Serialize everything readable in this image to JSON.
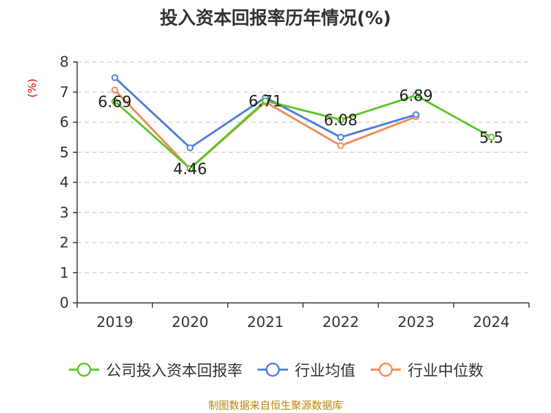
{
  "chart_data": {
    "type": "line",
    "title": "投入资本回报率历年情况(%)",
    "ylabel": "(%)",
    "categories": [
      "2019",
      "2020",
      "2021",
      "2022",
      "2023",
      "2024"
    ],
    "ylim": [
      0,
      8
    ],
    "yticks": [
      "0",
      "1",
      "2",
      "3",
      "4",
      "5",
      "6",
      "7",
      "8"
    ],
    "grid": true,
    "legend_position": "bottom",
    "series": [
      {
        "name": "公司投入资本回报率",
        "color": "#5cc62b",
        "values": [
          6.69,
          4.46,
          6.71,
          6.08,
          6.89,
          5.5
        ],
        "labels": [
          "6.69",
          "4.46",
          "6.71",
          "6.08",
          "6.89",
          "5.5"
        ]
      },
      {
        "name": "行业均值",
        "color": "#4f7fdc",
        "values": [
          7.48,
          5.15,
          6.82,
          5.5,
          6.25,
          null
        ]
      },
      {
        "name": "行业中位数",
        "color": "#f38b54",
        "values": [
          7.07,
          4.45,
          6.67,
          5.22,
          6.18,
          null
        ]
      }
    ]
  },
  "source_note": "制图数据来自恒生聚源数据库",
  "colors": {
    "axis": "#333333",
    "grid": "#cccccc",
    "ylabel": "#e00000",
    "source": "#b8860b"
  }
}
